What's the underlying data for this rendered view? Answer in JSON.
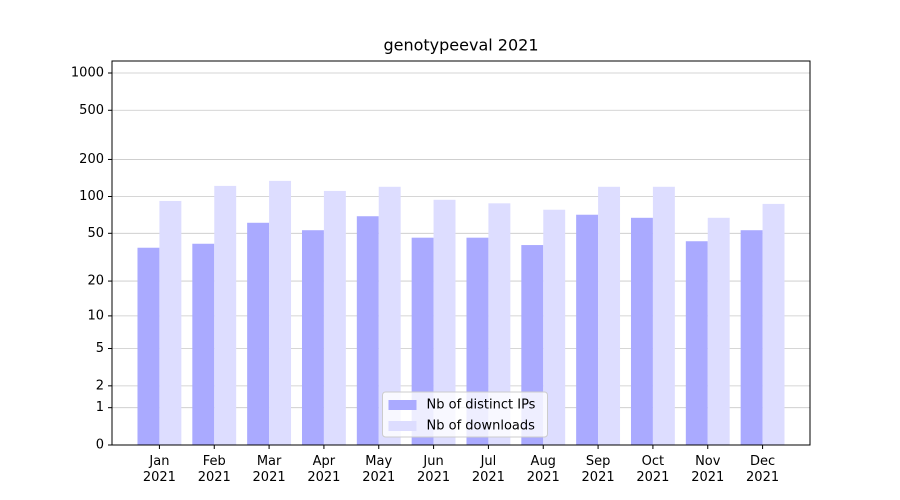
{
  "chart_data": {
    "type": "bar",
    "title": "genotypeeval 2021",
    "categories": [
      "Jan 2021",
      "Feb 2021",
      "Mar 2021",
      "Apr 2021",
      "May 2021",
      "Jun 2021",
      "Jul 2021",
      "Aug 2021",
      "Sep 2021",
      "Oct 2021",
      "Nov 2021",
      "Dec 2021"
    ],
    "series": [
      {
        "name": "Nb of distinct IPs",
        "color": "#aaaaff",
        "values": [
          38,
          41,
          61,
          53,
          69,
          46,
          46,
          40,
          71,
          67,
          43,
          53
        ]
      },
      {
        "name": "Nb of downloads",
        "color": "#ddddff",
        "values": [
          92,
          122,
          134,
          111,
          120,
          94,
          88,
          78,
          120,
          120,
          67,
          87
        ]
      }
    ],
    "yscale": "symlog",
    "ylim": [
      0,
      1250
    ],
    "yticks": [
      0,
      1,
      2,
      5,
      10,
      20,
      50,
      100,
      200,
      500,
      1000
    ],
    "grid": true,
    "legend": "lower center"
  }
}
